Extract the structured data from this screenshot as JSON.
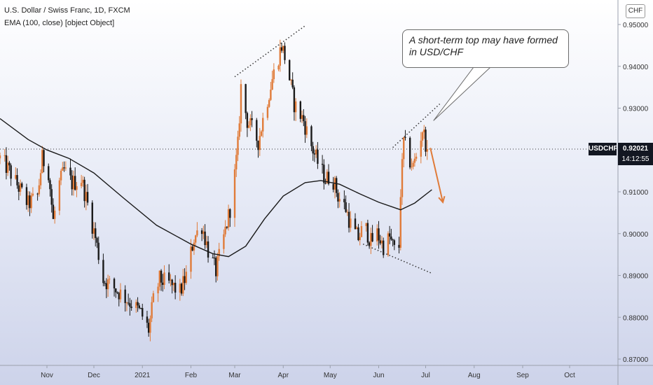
{
  "header": {
    "title": "U.S. Dollar / Swiss Franc, 1D, FXCM",
    "indicator": "EMA (100, close) [object Object]"
  },
  "currency_label": "CHF",
  "symbol_tag": "USDCHF",
  "last_price": "0.92021",
  "countdown": "14:12:55",
  "annotation": "A short-term top may have formed in USD/CHF",
  "colors": {
    "up": "#e07b39",
    "down": "#1a1a1a",
    "ema": "#1a1a1a",
    "trendline": "#333333",
    "arrow": "#e07b39"
  },
  "chart_data": {
    "type": "candlestick",
    "title": "U.S. Dollar / Swiss Franc, 1D, FXCM",
    "xlabel": "",
    "ylabel": "",
    "y_axis_position": "right",
    "ylim": [
      0.8675,
      0.9535
    ],
    "grid": false,
    "y_ticks": [
      "0.95000",
      "0.94000",
      "0.93000",
      "0.92000",
      "0.91000",
      "0.90000",
      "0.89000",
      "0.88000",
      "0.87000"
    ],
    "y_tick_values": [
      0.95,
      0.94,
      0.93,
      0.92,
      0.91,
      0.9,
      0.89,
      0.88,
      0.87
    ],
    "x_ticks": [
      "Nov",
      "Dec",
      "2021",
      "Feb",
      "Mar",
      "Apr",
      "May",
      "Jun",
      "Jul",
      "Aug",
      "Sep",
      "Oct"
    ],
    "x_tick_dates": [
      "2020-11-01",
      "2020-12-01",
      "2021-01-01",
      "2021-02-01",
      "2021-03-01",
      "2021-04-01",
      "2021-05-01",
      "2021-06-01",
      "2021-07-01",
      "2021-08-01",
      "2021-09-01",
      "2021-10-01"
    ],
    "date_range": [
      "2020-10-02",
      "2021-10-31"
    ],
    "last_date": "2021-07-02",
    "last_close": 0.92021,
    "close_path": [
      [
        "2020-10-02",
        0.918
      ],
      [
        "2020-10-08",
        0.915
      ],
      [
        "2020-10-14",
        0.911
      ],
      [
        "2020-10-20",
        0.907
      ],
      [
        "2020-10-26",
        0.909
      ],
      [
        "2020-10-29",
        0.918
      ],
      [
        "2020-11-02",
        0.915
      ],
      [
        "2020-11-05",
        0.903
      ],
      [
        "2020-11-09",
        0.912
      ],
      [
        "2020-11-12",
        0.915
      ],
      [
        "2020-11-17",
        0.912
      ],
      [
        "2020-11-23",
        0.913
      ],
      [
        "2020-11-27",
        0.907
      ],
      [
        "2020-12-02",
        0.899
      ],
      [
        "2020-12-07",
        0.889
      ],
      [
        "2020-12-14",
        0.887
      ],
      [
        "2020-12-20",
        0.885
      ],
      [
        "2020-12-26",
        0.883
      ],
      [
        "2020-12-31",
        0.881
      ],
      [
        "2021-01-05",
        0.877
      ],
      [
        "2021-01-08",
        0.884
      ],
      [
        "2021-01-12",
        0.889
      ],
      [
        "2021-01-18",
        0.888
      ],
      [
        "2021-01-25",
        0.886
      ],
      [
        "2021-01-29",
        0.89
      ],
      [
        "2021-02-03",
        0.899
      ],
      [
        "2021-02-08",
        0.902
      ],
      [
        "2021-02-12",
        0.896
      ],
      [
        "2021-02-17",
        0.891
      ],
      [
        "2021-02-22",
        0.899
      ],
      [
        "2021-02-26",
        0.906
      ],
      [
        "2021-03-01",
        0.914
      ],
      [
        "2021-03-03",
        0.921
      ],
      [
        "2021-03-05",
        0.935
      ],
      [
        "2021-03-09",
        0.927
      ],
      [
        "2021-03-12",
        0.925
      ],
      [
        "2021-03-16",
        0.922
      ],
      [
        "2021-03-20",
        0.929
      ],
      [
        "2021-03-25",
        0.937
      ],
      [
        "2021-03-31",
        0.945
      ],
      [
        "2021-04-03",
        0.941
      ],
      [
        "2021-04-08",
        0.931
      ],
      [
        "2021-04-14",
        0.927
      ],
      [
        "2021-04-18",
        0.922
      ],
      [
        "2021-04-23",
        0.917
      ],
      [
        "2021-04-28",
        0.913
      ],
      [
        "2021-05-02",
        0.914
      ],
      [
        "2021-05-06",
        0.909
      ],
      [
        "2021-05-11",
        0.906
      ],
      [
        "2021-05-15",
        0.901
      ],
      [
        "2021-05-19",
        0.899
      ],
      [
        "2021-05-23",
        0.902
      ],
      [
        "2021-05-27",
        0.898
      ],
      [
        "2021-05-31",
        0.9
      ],
      [
        "2021-06-04",
        0.897
      ],
      [
        "2021-06-08",
        0.899
      ],
      [
        "2021-06-11",
        0.896
      ],
      [
        "2021-06-14",
        0.897
      ],
      [
        "2021-06-15",
        0.91
      ],
      [
        "2021-06-17",
        0.922
      ],
      [
        "2021-06-20",
        0.918
      ],
      [
        "2021-06-23",
        0.916
      ],
      [
        "2021-06-26",
        0.92
      ],
      [
        "2021-06-29",
        0.925
      ],
      [
        "2021-07-02",
        0.9202
      ]
    ],
    "series": [
      {
        "name": "EMA (100, close)",
        "type": "line",
        "points": [
          [
            "2020-10-02",
            0.9275
          ],
          [
            "2020-10-20",
            0.9225
          ],
          [
            "2020-11-01",
            0.92
          ],
          [
            "2020-11-15",
            0.918
          ],
          [
            "2020-12-01",
            0.9145
          ],
          [
            "2020-12-20",
            0.9085
          ],
          [
            "2021-01-10",
            0.902
          ],
          [
            "2021-02-01",
            0.8975
          ],
          [
            "2021-02-15",
            0.8952
          ],
          [
            "2021-02-25",
            0.8945
          ],
          [
            "2021-03-08",
            0.897
          ],
          [
            "2021-03-20",
            0.9035
          ],
          [
            "2021-04-01",
            0.909
          ],
          [
            "2021-04-15",
            0.9122
          ],
          [
            "2021-04-25",
            0.9127
          ],
          [
            "2021-05-07",
            0.9118
          ],
          [
            "2021-05-20",
            0.9095
          ],
          [
            "2021-06-01",
            0.9075
          ],
          [
            "2021-06-15",
            0.9057
          ],
          [
            "2021-06-24",
            0.9073
          ],
          [
            "2021-07-05",
            0.9105
          ]
        ]
      }
    ],
    "annotations": [
      {
        "type": "trendline",
        "style": "dotted",
        "from": [
          "2021-03-01",
          0.9375
        ],
        "to": [
          "2021-04-15",
          0.9497
        ]
      },
      {
        "type": "trendline",
        "style": "dotted",
        "from": [
          "2021-05-22",
          0.8975
        ],
        "to": [
          "2021-07-05",
          0.8905
        ]
      },
      {
        "type": "trendline",
        "style": "dotted",
        "from": [
          "2021-06-10",
          0.9206
        ],
        "to": [
          "2021-07-10",
          0.931
        ]
      },
      {
        "type": "arrow",
        "from": [
          "2021-07-04",
          0.9205
        ],
        "to": [
          "2021-07-12",
          0.9075
        ]
      },
      {
        "type": "callout",
        "text": "A short-term top may have formed in USD/CHF",
        "points_to": [
          "2021-07-06",
          0.927
        ]
      },
      {
        "type": "hline",
        "style": "dotted",
        "value": 0.92021
      }
    ]
  }
}
